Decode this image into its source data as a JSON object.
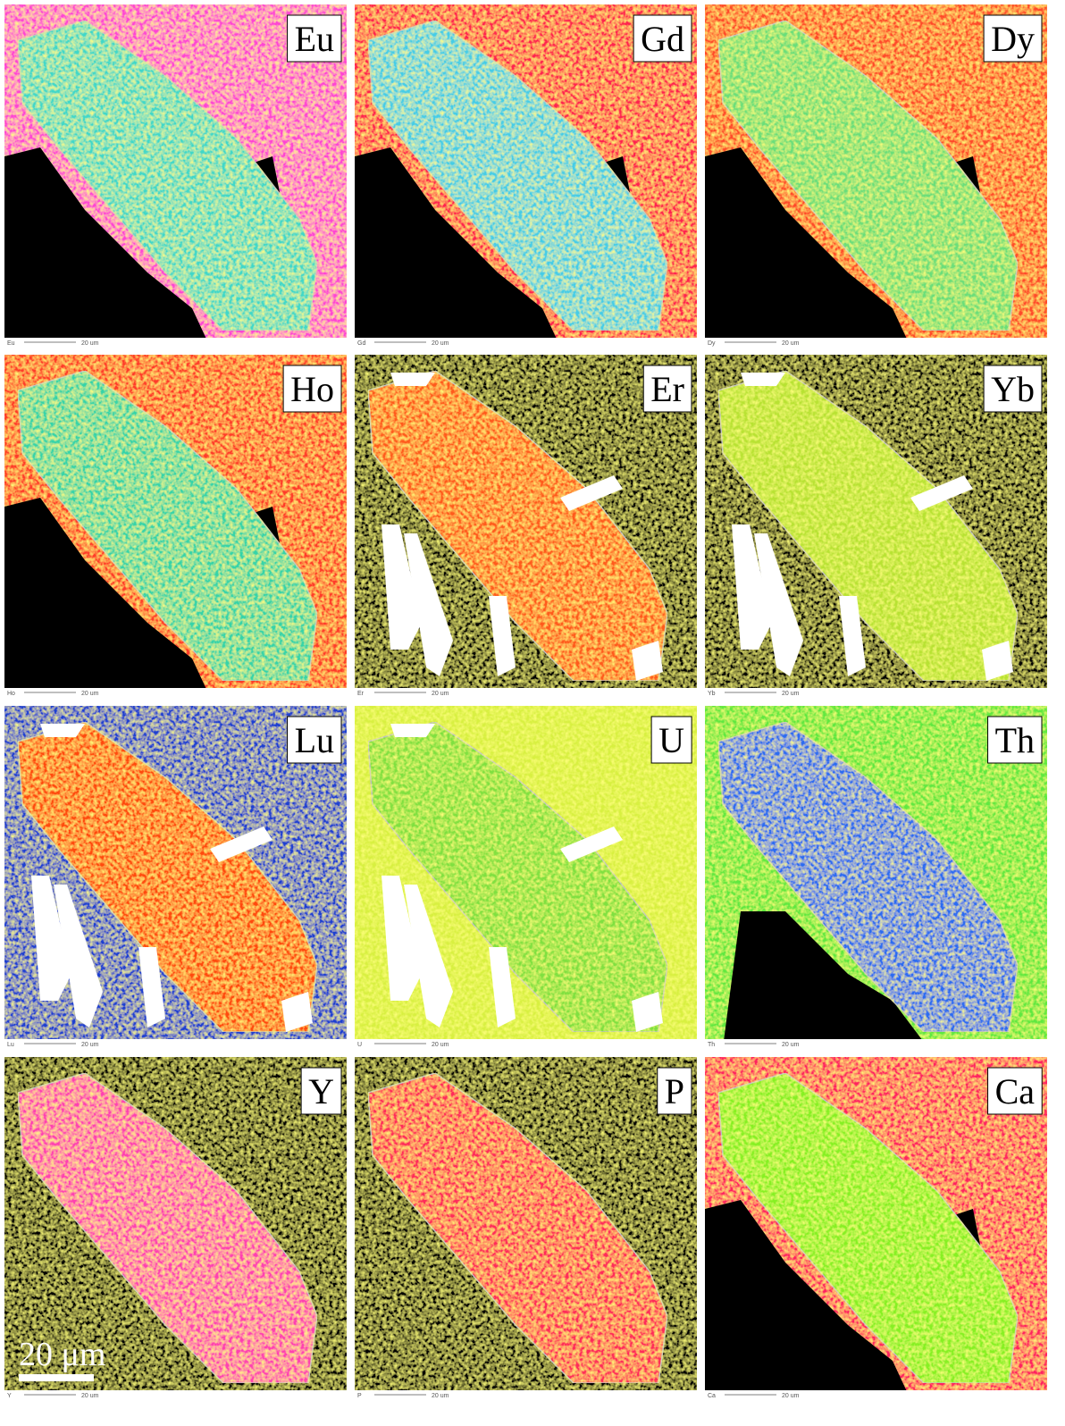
{
  "panels": [
    {
      "label": "Eu",
      "footer_label": "Eu",
      "footer_scale": "20 um"
    },
    {
      "label": "Gd",
      "footer_label": "Gd",
      "footer_scale": "20 um"
    },
    {
      "label": "Dy",
      "footer_label": "Dy",
      "footer_scale": "20 um"
    },
    {
      "label": "Ho",
      "footer_label": "Ho",
      "footer_scale": "20 um"
    },
    {
      "label": "Er",
      "footer_label": "Er",
      "footer_scale": "20 um"
    },
    {
      "label": "Yb",
      "footer_label": "Yb",
      "footer_scale": "20 um"
    },
    {
      "label": "Lu",
      "footer_label": "Lu",
      "footer_scale": "20 um"
    },
    {
      "label": "U",
      "footer_label": "U",
      "footer_scale": "20 um"
    },
    {
      "label": "Th",
      "footer_label": "Th",
      "footer_scale": "20 um"
    },
    {
      "label": "Y",
      "footer_label": "Y",
      "footer_scale": "20 um"
    },
    {
      "label": "P",
      "footer_label": "P",
      "footer_scale": "20 um"
    },
    {
      "label": "Ca",
      "footer_label": "Ca",
      "footer_scale": "20 um"
    }
  ],
  "scale_bar": "20 μm"
}
